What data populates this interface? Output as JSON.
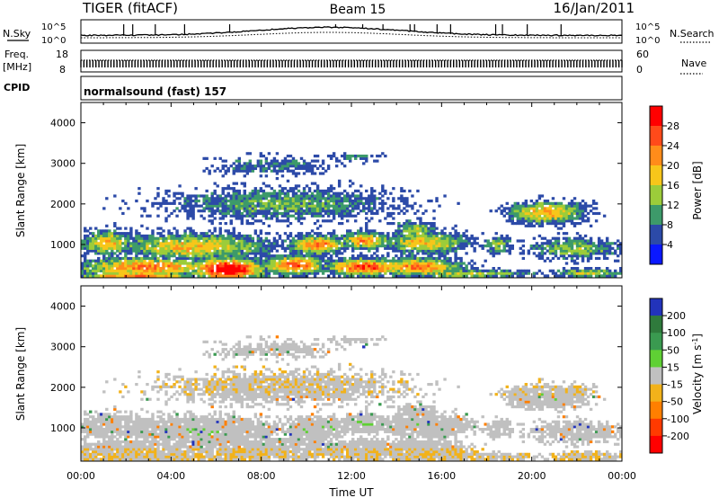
{
  "header": {
    "station": "TIGER (fitACF)",
    "beam": "Beam 15",
    "date": "16/Jan/2011"
  },
  "status_panels": {
    "nsky_label": "N.Sky",
    "nsearch_label": "N.Search",
    "freq_label_1": "Freq.",
    "freq_label_2": "[MHz]",
    "nave_label": "Nave",
    "cpid_label": "CPID",
    "cpid_value": "normalsound (fast) 157",
    "noise_ticks": [
      "10^5",
      "10^0"
    ],
    "freq_ticks": [
      "18",
      "8"
    ],
    "nave_ticks": [
      "60",
      "0"
    ]
  },
  "chart_data": [
    {
      "type": "heatmap",
      "name": "power",
      "ylabel": "Slant Range [km]",
      "xlabel": "",
      "y_ticks": [
        "4000",
        "3000",
        "2000",
        "1000"
      ],
      "y_values": [
        4000,
        3000,
        2000,
        1000
      ],
      "ylim": [
        180,
        4500
      ],
      "colorbar_label": "Power [dB]",
      "colorbar_ticks": [
        "28",
        "24",
        "20",
        "16",
        "12",
        "8",
        "4"
      ],
      "colorbar_colors": [
        "#ff0000",
        "#ff4a1a",
        "#ff8c1a",
        "#f7c61a",
        "#9ccc3a",
        "#3d9a6a",
        "#2c4aa8",
        "#0a18ff"
      ]
    },
    {
      "type": "heatmap",
      "name": "velocity",
      "ylabel": "Slant Range [km]",
      "xlabel": "Time UT",
      "y_ticks": [
        "4000",
        "3000",
        "2000",
        "1000"
      ],
      "y_values": [
        4000,
        3000,
        2000,
        1000
      ],
      "ylim": [
        180,
        4500
      ],
      "colorbar_label_main": "Velocity [m s",
      "colorbar_label_sup": "-1",
      "colorbar_label_end": "]",
      "colorbar_ticks": [
        "200",
        "100",
        "50",
        "15",
        "-15",
        "-50",
        "-100",
        "-200"
      ],
      "colorbar_colors": [
        "#2233bb",
        "#2f7a3c",
        "#3a9a50",
        "#5fd034",
        "#c0c0c0",
        "#f2b21a",
        "#ff7f00",
        "#ff3a00",
        "#ff0000"
      ]
    }
  ],
  "time_axis": {
    "labels": [
      "00:00",
      "04:00",
      "08:00",
      "12:00",
      "16:00",
      "20:00",
      "00:00"
    ],
    "hours": [
      0,
      4,
      8,
      12,
      16,
      20,
      24
    ],
    "title": "Time UT"
  }
}
